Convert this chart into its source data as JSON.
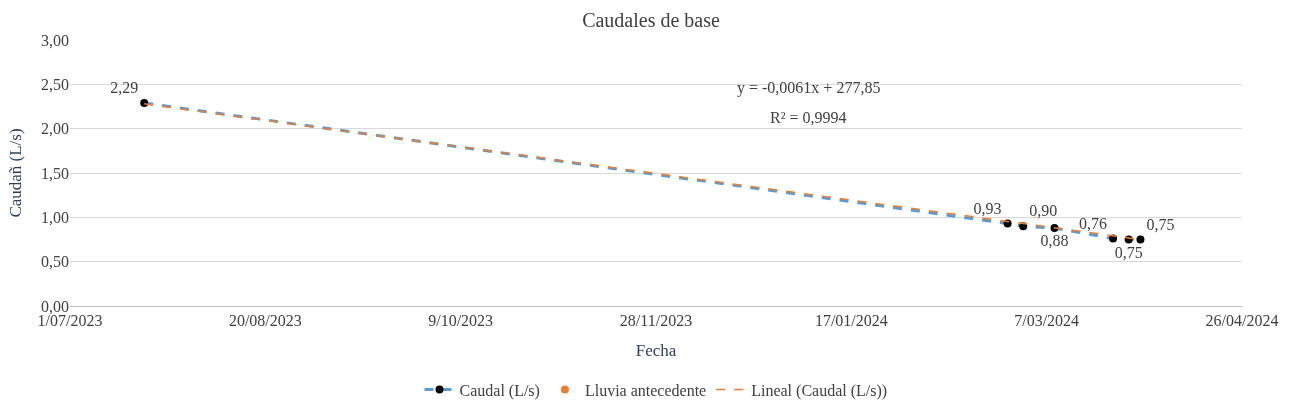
{
  "chart_data": {
    "type": "line",
    "title": "Caudales de base",
    "xlabel": "Fecha",
    "ylabel": "Caudañ (L/s)",
    "x": [
      "2023-07-20",
      "2024-02-26",
      "2024-03-01",
      "2024-03-09",
      "2024-03-24",
      "2024-03-28",
      "2024-03-31"
    ],
    "series": [
      {
        "name": "Caudal (L/s)",
        "color": "#5b9bd5",
        "marker": "circle",
        "line_style": "dashed",
        "values": [
          2.29,
          0.93,
          0.9,
          0.88,
          0.76,
          0.75,
          0.75
        ],
        "value_labels": [
          "2,29",
          "0,93",
          "0,90",
          "0,88",
          "0,76",
          "0,75",
          "0,75"
        ]
      },
      {
        "name": "Lluvia antecedente",
        "type": "scatter",
        "color": "#ed7d31",
        "marker": "circle",
        "values": [
          null,
          null,
          null,
          null,
          null,
          null,
          null
        ]
      },
      {
        "name": "Lineal (Caudal (L/s))",
        "type": "line",
        "color": "#ed7d31",
        "marker": "none",
        "line_style": "dashed",
        "x": [
          "2023-07-20",
          "2024-03-31"
        ],
        "values": [
          2.28,
          0.75
        ]
      }
    ],
    "annotations": [
      "y = -0,0061x + 277,85",
      "R² = 0,9994"
    ],
    "xlim": [
      "2023-07-01",
      "2024-04-26"
    ],
    "xticks": [
      {
        "value": "2023-07-01",
        "label": "1/07/2023"
      },
      {
        "value": "2023-08-20",
        "label": "20/08/2023"
      },
      {
        "value": "2023-10-09",
        "label": "9/10/2023"
      },
      {
        "value": "2023-11-28",
        "label": "28/11/2023"
      },
      {
        "value": "2024-01-17",
        "label": "17/01/2024"
      },
      {
        "value": "2024-03-07",
        "label": "7/03/2024"
      },
      {
        "value": "2024-04-26",
        "label": "26/04/2024"
      }
    ],
    "ylim": [
      0,
      3
    ],
    "yticks": [
      {
        "value": 0,
        "label": "0,00"
      },
      {
        "value": 0.5,
        "label": "0,50"
      },
      {
        "value": 1,
        "label": "1,00"
      },
      {
        "value": 1.5,
        "label": "1,50"
      },
      {
        "value": 2,
        "label": "2,00"
      },
      {
        "value": 2.5,
        "label": "2,50"
      },
      {
        "value": 3,
        "label": "3,00"
      }
    ],
    "grid": "y",
    "legend": "bottom"
  }
}
